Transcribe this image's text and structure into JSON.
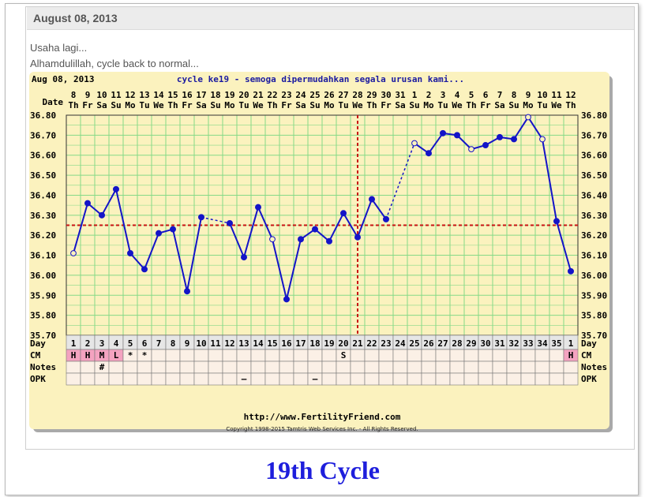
{
  "post": {
    "date": "August 08, 2013",
    "line1": "Usaha lagi...",
    "line2": "Alhamdulillah, cycle back to normal...",
    "caption": "19th Cycle"
  },
  "chart_data": {
    "type": "line",
    "chart_date": "Aug 08, 2013",
    "title": "cycle ke19 - semoga dipermudahkan segala urusan kami...",
    "row_labels": {
      "date": "Date",
      "day": "Day",
      "cm": "CM",
      "notes": "Notes",
      "opk": "OPK"
    },
    "x_dates": [
      "8",
      "9",
      "10",
      "11",
      "12",
      "13",
      "14",
      "15",
      "16",
      "17",
      "18",
      "19",
      "20",
      "21",
      "22",
      "23",
      "24",
      "25",
      "26",
      "27",
      "28",
      "29",
      "30",
      "31",
      "1",
      "2",
      "3",
      "4",
      "5",
      "6",
      "7",
      "8",
      "9",
      "10",
      "11",
      "12"
    ],
    "x_weekdays": [
      "Th",
      "Fr",
      "Sa",
      "Su",
      "Mo",
      "Tu",
      "We",
      "Th",
      "Fr",
      "Sa",
      "Su",
      "Mo",
      "Tu",
      "We",
      "Th",
      "Fr",
      "Sa",
      "Su",
      "Mo",
      "Tu",
      "We",
      "Th",
      "Fr",
      "Sa",
      "Su",
      "Mo",
      "Tu",
      "We",
      "Th",
      "Fr",
      "Sa",
      "Su",
      "Mo",
      "Tu",
      "We",
      "Th"
    ],
    "days": [
      "1",
      "2",
      "3",
      "4",
      "5",
      "6",
      "7",
      "8",
      "9",
      "10",
      "11",
      "12",
      "13",
      "14",
      "15",
      "16",
      "17",
      "18",
      "19",
      "20",
      "21",
      "22",
      "23",
      "24",
      "25",
      "26",
      "27",
      "28",
      "29",
      "30",
      "31",
      "32",
      "33",
      "34",
      "35",
      "1"
    ],
    "y_ticks": [
      "36.80",
      "36.70",
      "36.60",
      "36.50",
      "36.40",
      "36.30",
      "36.20",
      "36.10",
      "36.00",
      "35.90",
      "35.80",
      "35.70"
    ],
    "ylim": [
      35.7,
      36.8
    ],
    "temps": [
      36.11,
      36.36,
      36.3,
      36.43,
      36.11,
      36.03,
      36.21,
      36.23,
      35.92,
      36.29,
      null,
      36.26,
      36.09,
      36.34,
      36.18,
      35.88,
      36.18,
      36.23,
      36.17,
      36.31,
      36.19,
      36.38,
      36.28,
      null,
      36.66,
      36.61,
      36.71,
      36.7,
      36.63,
      36.65,
      36.69,
      36.68,
      36.79,
      36.68,
      36.27,
      36.02
    ],
    "open_points": [
      0,
      14,
      24,
      28,
      32,
      33
    ],
    "dashed_segments": [
      [
        9,
        11
      ],
      [
        22,
        24
      ]
    ],
    "coverline": 36.25,
    "ovulation_day_index": 20,
    "cm": [
      "H",
      "H",
      "M",
      "L",
      "*",
      "*",
      "",
      "",
      "",
      "",
      "",
      "",
      "",
      "",
      "",
      "",
      "",
      "",
      "",
      "S",
      "",
      "",
      "",
      "",
      "",
      "",
      "",
      "",
      "",
      "",
      "",
      "",
      "",
      "",
      "",
      "H"
    ],
    "notes": [
      "",
      "",
      "#",
      "",
      "",
      "",
      "",
      "",
      "",
      "",
      "",
      "",
      "",
      "",
      "",
      "",
      "",
      "",
      "",
      "",
      "",
      "",
      "",
      "",
      "",
      "",
      "",
      "",
      "",
      "",
      "",
      "",
      "",
      "",
      "",
      ""
    ],
    "opk": [
      "",
      "",
      "",
      "",
      "",
      "",
      "",
      "",
      "",
      "",
      "",
      "",
      "–",
      "",
      "",
      "",
      "",
      "–",
      "",
      "",
      "",
      "",
      "",
      "",
      "",
      "",
      "",
      "",
      "",
      "",
      "",
      "",
      "",
      "",
      "",
      ""
    ],
    "footer_url": "http://www.FertilityFriend.com",
    "copyright": "Copyright 1998-2015 Tamtris Web Services Inc. - All Rights Reserved.",
    "colors": {
      "background": "#fbf2be",
      "grid": "#86d986",
      "line": "#1414c8",
      "coverline": "#c81414",
      "cm_high": "#f4a3c0"
    }
  }
}
